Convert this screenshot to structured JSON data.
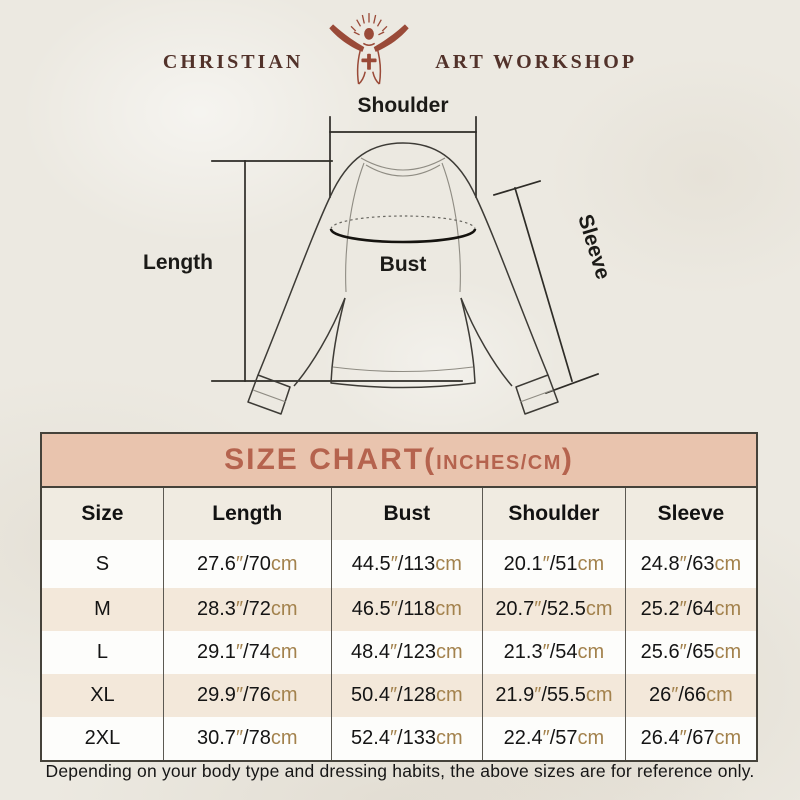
{
  "brand": {
    "name_left": "CHRISTIAN",
    "name_right": "ART WORKSHOP",
    "logo_icon": "jesus-with-rays-and-cross-icon",
    "accent_color": "#9a4a38",
    "text_color": "#52322a"
  },
  "diagram": {
    "labels": {
      "shoulder": "Shoulder",
      "length": "Length",
      "bust": "Bust",
      "sleeve": "Sleeve"
    },
    "line_color": "#2e2c27"
  },
  "size_chart": {
    "title_main": "SIZE CHART(",
    "title_sub": "INCHES/CM",
    "title_close": ")",
    "header_bg": "#e9c4ae",
    "header_text_color": "#b5634e",
    "unit_color": "#a3824d",
    "inch_mark": "″",
    "slash": "/",
    "cm_suffix": "cm",
    "columns": [
      "Size",
      "Length",
      "Bust",
      "Shoulder",
      "Sleeve"
    ],
    "measure_keys": [
      "length",
      "bust",
      "shoulder",
      "sleeve"
    ],
    "rows": [
      {
        "size": "S",
        "length": {
          "in": "27.6",
          "cm": "70"
        },
        "bust": {
          "in": "44.5",
          "cm": "113"
        },
        "shoulder": {
          "in": "20.1",
          "cm": "51"
        },
        "sleeve": {
          "in": "24.8",
          "cm": "63"
        }
      },
      {
        "size": "M",
        "length": {
          "in": "28.3",
          "cm": "72"
        },
        "bust": {
          "in": "46.5",
          "cm": "118"
        },
        "shoulder": {
          "in": "20.7",
          "cm": "52.5"
        },
        "sleeve": {
          "in": "25.2",
          "cm": "64"
        }
      },
      {
        "size": "L",
        "length": {
          "in": "29.1",
          "cm": "74"
        },
        "bust": {
          "in": "48.4",
          "cm": "123"
        },
        "shoulder": {
          "in": "21.3",
          "cm": "54"
        },
        "sleeve": {
          "in": "25.6",
          "cm": "65"
        }
      },
      {
        "size": "XL",
        "length": {
          "in": "29.9",
          "cm": "76"
        },
        "bust": {
          "in": "50.4",
          "cm": "128"
        },
        "shoulder": {
          "in": "21.9",
          "cm": "55.5"
        },
        "sleeve": {
          "in": "26",
          "cm": "66"
        }
      },
      {
        "size": "2XL",
        "length": {
          "in": "30.7",
          "cm": "78"
        },
        "bust": {
          "in": "52.4",
          "cm": "133"
        },
        "shoulder": {
          "in": "22.4",
          "cm": "57"
        },
        "sleeve": {
          "in": "26.4",
          "cm": "67"
        }
      }
    ]
  },
  "footer": {
    "note": "Depending on your body type and dressing habits, the above sizes are for reference only."
  }
}
